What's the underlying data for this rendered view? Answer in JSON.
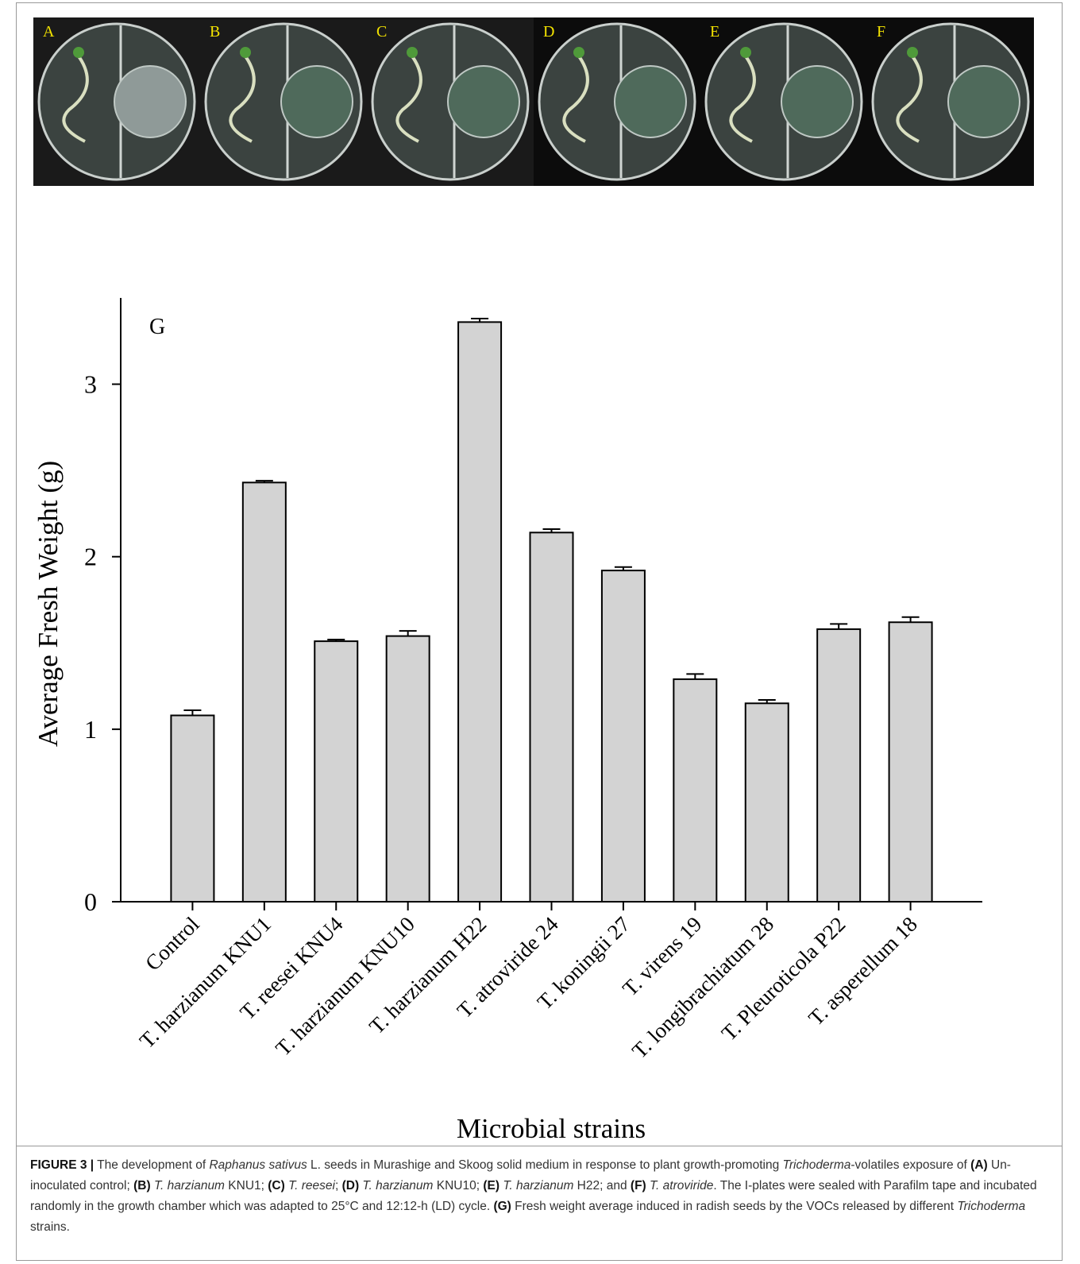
{
  "panels": {
    "labels": [
      "A",
      "B",
      "C",
      "D",
      "E",
      "F"
    ]
  },
  "chart_data": {
    "type": "bar",
    "panel_label": "G",
    "categories": [
      "Control",
      "T. harzianum KNU1",
      "T. reesei KNU4",
      "T. harzianum KNU10",
      "T. harzianum H22",
      "T. atroviride 24",
      "T. koningii 27",
      "T. virens 19",
      "T. longibrachiatum 28",
      "T. Pleuroticola P22",
      "T. asperellum 18"
    ],
    "values": [
      1.08,
      2.43,
      1.51,
      1.54,
      3.36,
      2.14,
      1.92,
      1.29,
      1.15,
      1.58,
      1.62
    ],
    "errors": [
      0.03,
      0.01,
      0.01,
      0.03,
      0.02,
      0.02,
      0.02,
      0.03,
      0.02,
      0.03,
      0.03
    ],
    "color": "#d3d3d3",
    "ylim": [
      0,
      3.5
    ],
    "yticks": [
      0,
      1,
      2,
      3
    ],
    "y_label": "Average Fresh Weight (g)",
    "x_label": "Microbial strains"
  },
  "caption": [
    {
      "text": "FIGURE 3 |",
      "style": "bold"
    },
    {
      "text": " The development of ",
      "style": "normal"
    },
    {
      "text": "Raphanus sativus",
      "style": "italic"
    },
    {
      "text": " L. seeds in Murashige and Skoog solid medium in response to plant growth-promoting ",
      "style": "normal"
    },
    {
      "text": "Trichoderma",
      "style": "italic"
    },
    {
      "text": "-volatiles exposure of ",
      "style": "normal"
    },
    {
      "text": "(A)",
      "style": "bold"
    },
    {
      "text": " Un-inoculated control; ",
      "style": "normal"
    },
    {
      "text": "(B)",
      "style": "bold"
    },
    {
      "text": " T. harzianum",
      "style": "italic"
    },
    {
      "text": " KNU1; ",
      "style": "normal"
    },
    {
      "text": "(C)",
      "style": "bold"
    },
    {
      "text": " T. reesei",
      "style": "italic"
    },
    {
      "text": "; ",
      "style": "normal"
    },
    {
      "text": "(D)",
      "style": "bold"
    },
    {
      "text": " T. harzianum",
      "style": "italic"
    },
    {
      "text": " KNU10; ",
      "style": "normal"
    },
    {
      "text": "(E)",
      "style": "bold"
    },
    {
      "text": " T. harzianum",
      "style": "italic"
    },
    {
      "text": " H22; and ",
      "style": "normal"
    },
    {
      "text": "(F)",
      "style": "bold"
    },
    {
      "text": " T. atroviride",
      "style": "italic"
    },
    {
      "text": ". The I-plates were sealed with Parafilm tape and incubated randomly in the growth chamber which was adapted to 25°C and 12:12-h (LD) cycle. ",
      "style": "normal"
    },
    {
      "text": "(G)",
      "style": "bold"
    },
    {
      "text": " Fresh weight average induced in radish seeds by the VOCs released by different ",
      "style": "normal"
    },
    {
      "text": "Trichoderma",
      "style": "italic"
    },
    {
      "text": " strains.",
      "style": "normal"
    }
  ]
}
